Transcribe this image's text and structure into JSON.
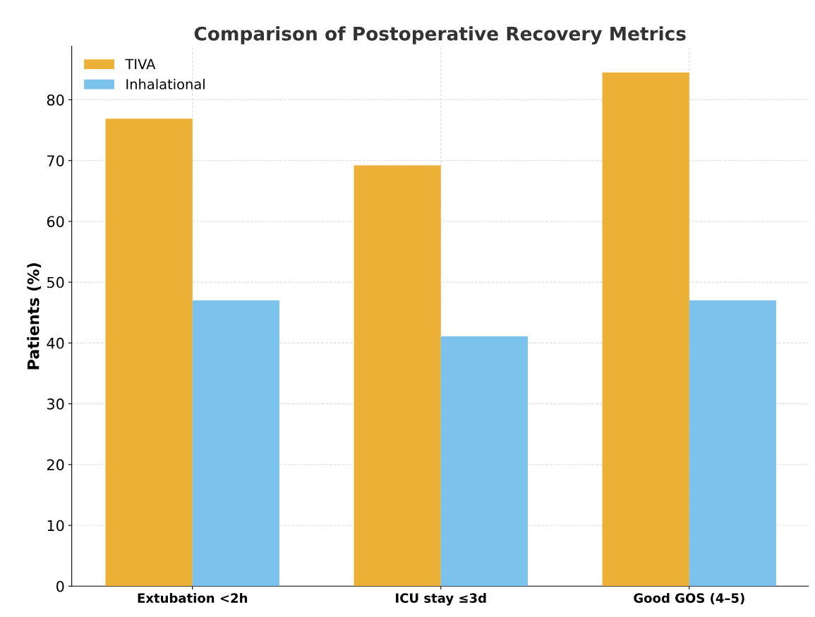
{
  "chart_data": {
    "type": "bar",
    "title": "Comparison of Postoperative Recovery Metrics",
    "ylabel": "Patients (%)",
    "categories": [
      "Extubation <2h",
      "ICU stay ≤3d",
      "Good GOS (4–5)"
    ],
    "series": [
      {
        "name": "TIVA",
        "color": "#ebb035",
        "values": [
          76.9,
          69.2,
          84.5
        ]
      },
      {
        "name": "Inhalational",
        "color": "#7bc3ed",
        "values": [
          47.0,
          41.1,
          47.0
        ]
      }
    ],
    "ylim": [
      0,
      88.8
    ],
    "yticks": [
      0,
      10,
      20,
      30,
      40,
      50,
      60,
      70,
      80
    ],
    "grid": true,
    "legend": "top left"
  }
}
